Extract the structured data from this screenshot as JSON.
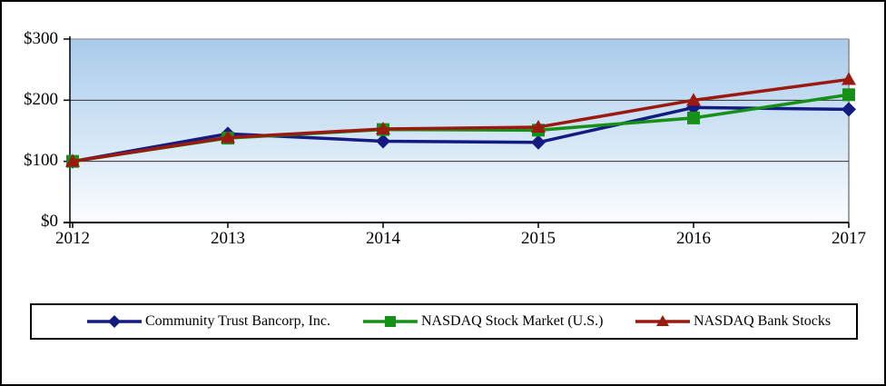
{
  "chart_data": {
    "type": "line",
    "title": "",
    "xlabel": "",
    "ylabel": "",
    "x_labels": [
      "2012",
      "2013",
      "2014",
      "2015",
      "2016",
      "2017"
    ],
    "ylim": [
      0,
      300
    ],
    "y_ticks": [
      {
        "value": 0,
        "label": "$0"
      },
      {
        "value": 100,
        "label": "$100"
      },
      {
        "value": 200,
        "label": "$200"
      },
      {
        "value": 300,
        "label": "$300"
      }
    ],
    "grid": "horizontal",
    "legend_position": "bottom",
    "plot_background": {
      "top": "#a8cbeb",
      "bottom": "#fbfdff"
    },
    "axis_color": "#000000",
    "gridline_color": "#333333",
    "frame_color": "#9aa0a6",
    "series": [
      {
        "name": "Community Trust Bancorp, Inc.",
        "marker": "diamond",
        "color": "#131a80",
        "values": [
          100,
          145,
          133,
          131,
          188,
          185
        ]
      },
      {
        "name": "NASDAQ Stock Market (U.S.)",
        "marker": "square",
        "color": "#169016",
        "values": [
          100,
          138,
          152,
          151,
          171,
          209
        ]
      },
      {
        "name": "NASDAQ Bank Stocks",
        "marker": "triangle",
        "color": "#9a1a10",
        "values": [
          100,
          139,
          153,
          156,
          200,
          234
        ]
      }
    ]
  }
}
